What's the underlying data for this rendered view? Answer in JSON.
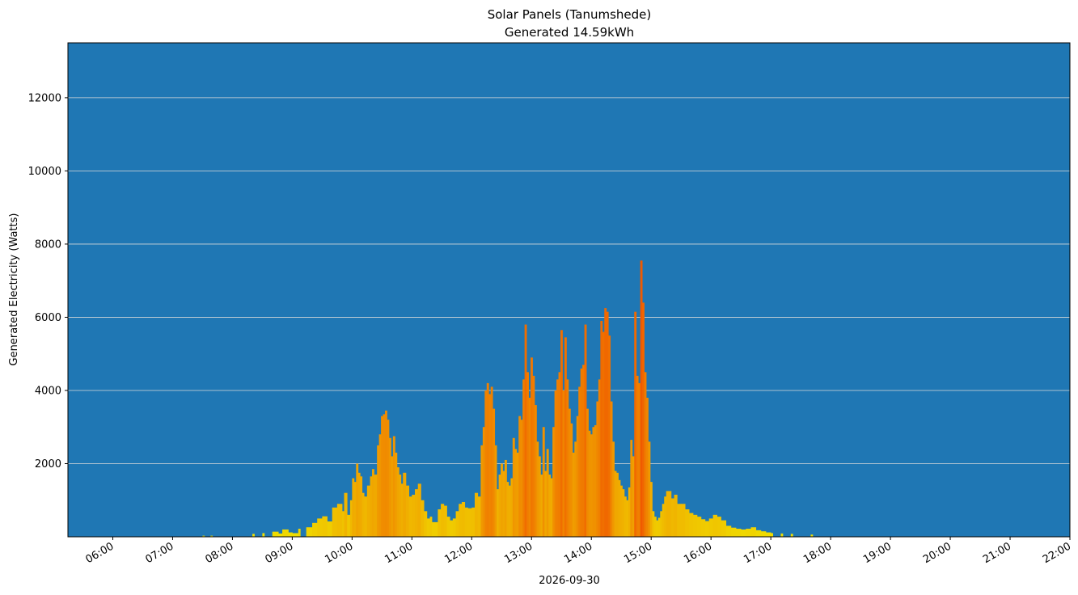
{
  "chart_data": {
    "type": "bar",
    "title": "Solar Panels (Tanumshede)",
    "subtitle": "Generated 14.59kWh",
    "xlabel": "2026-09-30",
    "ylabel": "Generated Electricity (Watts)",
    "ylim": [
      0,
      13500
    ],
    "yticks": [
      2000,
      4000,
      6000,
      8000,
      10000,
      12000
    ],
    "x_range": [
      "05:15",
      "22:00"
    ],
    "xticks": [
      "06:00",
      "07:00",
      "08:00",
      "09:00",
      "10:00",
      "11:00",
      "12:00",
      "13:00",
      "14:00",
      "15:00",
      "16:00",
      "17:00",
      "18:00",
      "19:00",
      "20:00",
      "21:00",
      "22:00"
    ],
    "grid": "horizontal",
    "colors": {
      "plot_background": "#1f77b4",
      "grid": "#d8d8d8",
      "low_power_bar": "#f0f000",
      "high_power_bar": "#f05a00"
    },
    "bar_width_minutes": 2,
    "series": [
      {
        "points": [
          [
            "07:30",
            30
          ],
          [
            "07:38",
            30
          ],
          [
            "08:20",
            80
          ],
          [
            "08:30",
            100
          ],
          [
            "08:40",
            140
          ],
          [
            "08:46",
            90
          ],
          [
            "08:50",
            200
          ],
          [
            "08:56",
            120
          ],
          [
            "09:00",
            100
          ],
          [
            "09:06",
            220
          ],
          [
            "09:14",
            260
          ],
          [
            "09:20",
            380
          ],
          [
            "09:25",
            500
          ],
          [
            "09:30",
            560
          ],
          [
            "09:35",
            420
          ],
          [
            "09:40",
            800
          ],
          [
            "09:45",
            900
          ],
          [
            "09:50",
            700
          ],
          [
            "09:52",
            1200
          ],
          [
            "09:55",
            600
          ],
          [
            "09:58",
            1000
          ],
          [
            "10:00",
            1600
          ],
          [
            "10:02",
            1500
          ],
          [
            "10:04",
            2000
          ],
          [
            "10:06",
            1750
          ],
          [
            "10:08",
            1650
          ],
          [
            "10:10",
            1200
          ],
          [
            "10:12",
            1100
          ],
          [
            "10:15",
            1400
          ],
          [
            "10:18",
            1650
          ],
          [
            "10:20",
            1850
          ],
          [
            "10:22",
            1700
          ],
          [
            "10:25",
            2500
          ],
          [
            "10:27",
            2800
          ],
          [
            "10:29",
            3300
          ],
          [
            "10:31",
            3350
          ],
          [
            "10:33",
            3450
          ],
          [
            "10:35",
            3200
          ],
          [
            "10:37",
            2700
          ],
          [
            "10:39",
            2200
          ],
          [
            "10:41",
            2750
          ],
          [
            "10:43",
            2300
          ],
          [
            "10:45",
            1900
          ],
          [
            "10:47",
            1700
          ],
          [
            "10:49",
            1450
          ],
          [
            "10:51",
            1750
          ],
          [
            "10:54",
            1400
          ],
          [
            "10:57",
            1100
          ],
          [
            "11:00",
            1150
          ],
          [
            "11:03",
            1300
          ],
          [
            "11:06",
            1450
          ],
          [
            "11:09",
            1000
          ],
          [
            "11:12",
            700
          ],
          [
            "11:15",
            500
          ],
          [
            "11:18",
            550
          ],
          [
            "11:20",
            400
          ],
          [
            "11:23",
            400
          ],
          [
            "11:26",
            750
          ],
          [
            "11:29",
            900
          ],
          [
            "11:32",
            850
          ],
          [
            "11:35",
            550
          ],
          [
            "11:38",
            450
          ],
          [
            "11:41",
            500
          ],
          [
            "11:44",
            700
          ],
          [
            "11:47",
            900
          ],
          [
            "11:50",
            950
          ],
          [
            "11:53",
            800
          ],
          [
            "11:56",
            780
          ],
          [
            "12:00",
            800
          ],
          [
            "12:03",
            1200
          ],
          [
            "12:06",
            1100
          ],
          [
            "12:09",
            2500
          ],
          [
            "12:11",
            3000
          ],
          [
            "12:13",
            4000
          ],
          [
            "12:15",
            4200
          ],
          [
            "12:17",
            3900
          ],
          [
            "12:19",
            4100
          ],
          [
            "12:21",
            3500
          ],
          [
            "12:23",
            2500
          ],
          [
            "12:25",
            1300
          ],
          [
            "12:27",
            1700
          ],
          [
            "12:29",
            2000
          ],
          [
            "12:31",
            1800
          ],
          [
            "12:33",
            2100
          ],
          [
            "12:35",
            1500
          ],
          [
            "12:37",
            1400
          ],
          [
            "12:39",
            1600
          ],
          [
            "12:41",
            2700
          ],
          [
            "12:43",
            2400
          ],
          [
            "12:45",
            2300
          ],
          [
            "12:47",
            3300
          ],
          [
            "12:49",
            3200
          ],
          [
            "12:51",
            4300
          ],
          [
            "12:53",
            5800
          ],
          [
            "12:55",
            4500
          ],
          [
            "12:57",
            3800
          ],
          [
            "12:59",
            4900
          ],
          [
            "13:01",
            4400
          ],
          [
            "13:03",
            3600
          ],
          [
            "13:05",
            2600
          ],
          [
            "13:07",
            2200
          ],
          [
            "13:09",
            1700
          ],
          [
            "13:11",
            3000
          ],
          [
            "13:13",
            1800
          ],
          [
            "13:15",
            2400
          ],
          [
            "13:17",
            1700
          ],
          [
            "13:19",
            1600
          ],
          [
            "13:21",
            3000
          ],
          [
            "13:23",
            4000
          ],
          [
            "13:25",
            4300
          ],
          [
            "13:27",
            4500
          ],
          [
            "13:29",
            5650
          ],
          [
            "13:31",
            4000
          ],
          [
            "13:33",
            5450
          ],
          [
            "13:35",
            4300
          ],
          [
            "13:37",
            3500
          ],
          [
            "13:39",
            3100
          ],
          [
            "13:41",
            2300
          ],
          [
            "13:43",
            2600
          ],
          [
            "13:45",
            3300
          ],
          [
            "13:47",
            4100
          ],
          [
            "13:49",
            4600
          ],
          [
            "13:51",
            4700
          ],
          [
            "13:53",
            5800
          ],
          [
            "13:55",
            3500
          ],
          [
            "13:57",
            2900
          ],
          [
            "13:59",
            2800
          ],
          [
            "14:01",
            3000
          ],
          [
            "14:03",
            3050
          ],
          [
            "14:05",
            3700
          ],
          [
            "14:07",
            4300
          ],
          [
            "14:09",
            5900
          ],
          [
            "14:11",
            5600
          ],
          [
            "14:13",
            6250
          ],
          [
            "14:15",
            6150
          ],
          [
            "14:17",
            5500
          ],
          [
            "14:19",
            3700
          ],
          [
            "14:21",
            2600
          ],
          [
            "14:23",
            1800
          ],
          [
            "14:25",
            1750
          ],
          [
            "14:27",
            1550
          ],
          [
            "14:29",
            1400
          ],
          [
            "14:31",
            1300
          ],
          [
            "14:33",
            1100
          ],
          [
            "14:35",
            1000
          ],
          [
            "14:37",
            1350
          ],
          [
            "14:39",
            2650
          ],
          [
            "14:41",
            2200
          ],
          [
            "14:43",
            6150
          ],
          [
            "14:45",
            4400
          ],
          [
            "14:47",
            4200
          ],
          [
            "14:49",
            7550
          ],
          [
            "14:51",
            6400
          ],
          [
            "14:53",
            4500
          ],
          [
            "14:55",
            3800
          ],
          [
            "14:57",
            2600
          ],
          [
            "14:59",
            1500
          ],
          [
            "15:01",
            700
          ],
          [
            "15:03",
            550
          ],
          [
            "15:05",
            450
          ],
          [
            "15:07",
            520
          ],
          [
            "15:09",
            700
          ],
          [
            "15:11",
            900
          ],
          [
            "15:13",
            1100
          ],
          [
            "15:15",
            1250
          ],
          [
            "15:17",
            1250
          ],
          [
            "15:20",
            1050
          ],
          [
            "15:23",
            1150
          ],
          [
            "15:26",
            900
          ],
          [
            "15:30",
            900
          ],
          [
            "15:34",
            750
          ],
          [
            "15:38",
            650
          ],
          [
            "15:42",
            600
          ],
          [
            "15:46",
            550
          ],
          [
            "15:50",
            480
          ],
          [
            "15:54",
            430
          ],
          [
            "15:58",
            500
          ],
          [
            "16:02",
            600
          ],
          [
            "16:06",
            550
          ],
          [
            "16:10",
            450
          ],
          [
            "16:15",
            300
          ],
          [
            "16:20",
            250
          ],
          [
            "16:25",
            220
          ],
          [
            "16:30",
            200
          ],
          [
            "16:35",
            220
          ],
          [
            "16:40",
            260
          ],
          [
            "16:45",
            180
          ],
          [
            "16:50",
            150
          ],
          [
            "16:55",
            120
          ],
          [
            "17:00",
            100
          ],
          [
            "17:10",
            90
          ],
          [
            "17:20",
            80
          ],
          [
            "17:40",
            60
          ]
        ]
      }
    ]
  }
}
